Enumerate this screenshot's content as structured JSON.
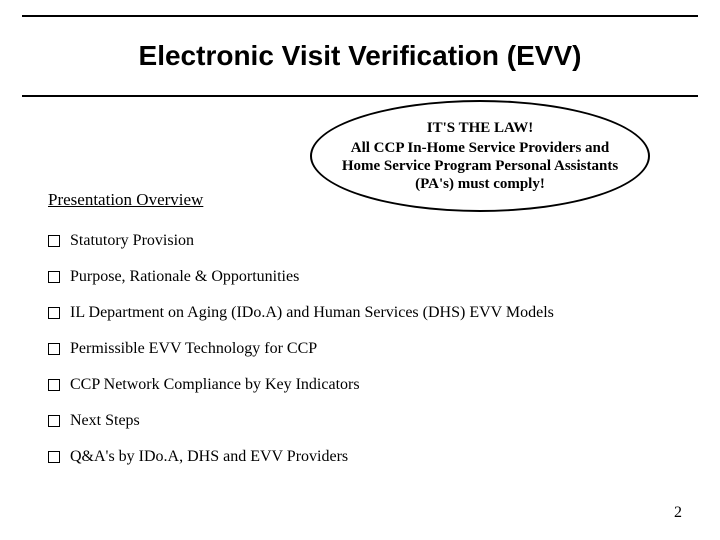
{
  "title": "Electronic Visit Verification (EVV)",
  "overview_label": "Presentation Overview",
  "callout": {
    "line1": "IT'S  THE LAW!",
    "line2": "All CCP In-Home Service Providers and Home Service Program Personal Assistants (PA's) must comply!"
  },
  "bullets": [
    "Statutory Provision",
    "Purpose, Rationale & Opportunities",
    "IL Department on Aging (IDo.A) and Human Services (DHS) EVV Models",
    "Permissible EVV Technology for CCP",
    "CCP Network Compliance by Key Indicators",
    "Next Steps",
    "Q&A's by IDo.A, DHS and EVV Providers"
  ],
  "page_number": "2",
  "colors": {
    "background": "#ffffff",
    "text": "#000000",
    "rule": "#000000"
  }
}
